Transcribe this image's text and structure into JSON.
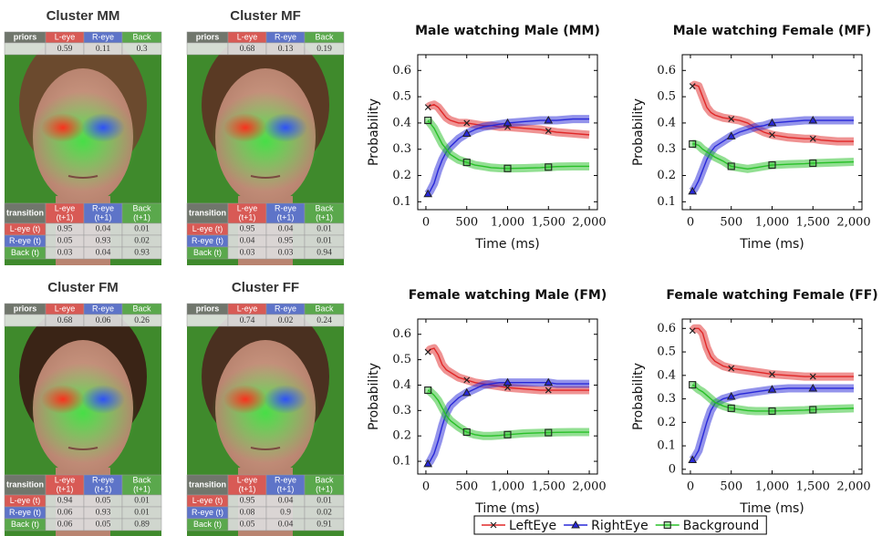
{
  "table_labels": {
    "priors": "priors",
    "cols": [
      "L-eye",
      "R-eye",
      "Back"
    ],
    "transition": "transition",
    "next_cols": [
      [
        "L-eye",
        "(t+1)"
      ],
      [
        "R-eye",
        "(t+1)"
      ],
      [
        "Back",
        "(t+1)"
      ]
    ],
    "rows": [
      "L-eye (t)",
      "R-eye (t)",
      "Back (t)"
    ]
  },
  "panels": [
    {
      "title": "Cluster MM",
      "priors": [
        0.59,
        0.11,
        0.3
      ],
      "transition": [
        [
          0.95,
          0.04,
          0.01
        ],
        [
          0.05,
          0.93,
          0.02
        ],
        [
          0.03,
          0.04,
          0.93
        ]
      ]
    },
    {
      "title": "Cluster MF",
      "priors": [
        0.68,
        0.13,
        0.19
      ],
      "transition": [
        [
          0.95,
          0.04,
          0.01
        ],
        [
          0.04,
          0.95,
          0.01
        ],
        [
          0.03,
          0.03,
          0.94
        ]
      ]
    },
    {
      "title": "Cluster FM",
      "priors": [
        0.68,
        0.06,
        0.26
      ],
      "transition": [
        [
          0.94,
          0.05,
          0.01
        ],
        [
          0.06,
          0.93,
          0.01
        ],
        [
          0.06,
          0.05,
          0.89
        ]
      ]
    },
    {
      "title": "Cluster FF",
      "priors": [
        0.74,
        0.02,
        0.24
      ],
      "transition": [
        [
          0.95,
          0.04,
          0.01
        ],
        [
          0.08,
          0.9,
          0.02
        ],
        [
          0.05,
          0.04,
          0.91
        ]
      ]
    }
  ],
  "legend": "bottom",
  "chart_data": [
    {
      "type": "line",
      "title": "Male watching Male (MM)",
      "x_label": "Time (ms)",
      "y_label": "Probability",
      "x": [
        25,
        50,
        100,
        150,
        200,
        250,
        300,
        400,
        500,
        600,
        700,
        800,
        900,
        1000,
        1200,
        1400,
        1500,
        1600,
        1800,
        2000
      ],
      "xlim": [
        -100,
        2100
      ],
      "xticks": [
        0,
        500,
        {
          "value": 1000,
          "label": "1,000"
        },
        {
          "value": 1500,
          "label": "1,500"
        },
        {
          "value": 2000,
          "label": "2,000"
        }
      ],
      "ylim": [
        0.07,
        0.66
      ],
      "yticks": [
        0.1,
        0.2,
        0.3,
        0.4,
        0.5,
        0.6
      ],
      "series": [
        {
          "name": "LeftEye",
          "color": "#e02828",
          "marker": "x",
          "values": [
            0.46,
            0.465,
            0.47,
            0.46,
            0.44,
            0.42,
            0.41,
            0.4,
            0.4,
            0.395,
            0.39,
            0.39,
            0.385,
            0.385,
            0.38,
            0.375,
            0.37,
            0.365,
            0.36,
            0.355
          ]
        },
        {
          "name": "RightEye",
          "color": "#2828d8",
          "marker": "triangle",
          "values": [
            0.13,
            0.14,
            0.17,
            0.22,
            0.26,
            0.29,
            0.31,
            0.34,
            0.36,
            0.375,
            0.385,
            0.39,
            0.395,
            0.4,
            0.405,
            0.41,
            0.41,
            0.41,
            0.415,
            0.415
          ]
        },
        {
          "name": "Background",
          "color": "#28c028",
          "marker": "square",
          "values": [
            0.41,
            0.4,
            0.38,
            0.35,
            0.32,
            0.3,
            0.28,
            0.26,
            0.25,
            0.24,
            0.235,
            0.23,
            0.228,
            0.227,
            0.228,
            0.23,
            0.232,
            0.234,
            0.235,
            0.235
          ]
        }
      ]
    },
    {
      "type": "line",
      "title": "Male watching Female (MF)",
      "x_label": "Time (ms)",
      "y_label": "Probability",
      "x": [
        25,
        50,
        100,
        150,
        200,
        250,
        300,
        400,
        500,
        600,
        700,
        800,
        900,
        1000,
        1200,
        1400,
        1500,
        1600,
        1800,
        2000
      ],
      "xlim": [
        -100,
        2100
      ],
      "xticks": [
        0,
        500,
        {
          "value": 1000,
          "label": "1,000"
        },
        {
          "value": 1500,
          "label": "1,500"
        },
        {
          "value": 2000,
          "label": "2,000"
        }
      ],
      "ylim": [
        0.07,
        0.66
      ],
      "yticks": [
        0.1,
        0.2,
        0.3,
        0.4,
        0.5,
        0.6
      ],
      "series": [
        {
          "name": "LeftEye",
          "color": "#e02828",
          "marker": "x",
          "values": [
            0.54,
            0.545,
            0.54,
            0.5,
            0.46,
            0.44,
            0.43,
            0.42,
            0.415,
            0.41,
            0.4,
            0.38,
            0.365,
            0.355,
            0.345,
            0.34,
            0.34,
            0.335,
            0.33,
            0.33
          ]
        },
        {
          "name": "RightEye",
          "color": "#2828d8",
          "marker": "triangle",
          "values": [
            0.14,
            0.15,
            0.18,
            0.22,
            0.26,
            0.29,
            0.31,
            0.33,
            0.35,
            0.365,
            0.375,
            0.385,
            0.39,
            0.4,
            0.405,
            0.41,
            0.41,
            0.41,
            0.41,
            0.41
          ]
        },
        {
          "name": "Background",
          "color": "#28c028",
          "marker": "square",
          "values": [
            0.32,
            0.32,
            0.315,
            0.3,
            0.29,
            0.28,
            0.27,
            0.255,
            0.235,
            0.23,
            0.225,
            0.23,
            0.235,
            0.24,
            0.243,
            0.245,
            0.247,
            0.248,
            0.25,
            0.252
          ]
        }
      ]
    },
    {
      "type": "line",
      "title": "Female watching Male (FM)",
      "x_label": "Time (ms)",
      "y_label": "Probability",
      "x": [
        25,
        50,
        100,
        150,
        200,
        250,
        300,
        400,
        500,
        600,
        700,
        800,
        900,
        1000,
        1200,
        1400,
        1500,
        1600,
        1800,
        2000
      ],
      "xlim": [
        -100,
        2100
      ],
      "xticks": [
        0,
        500,
        {
          "value": 1000,
          "label": "1,000"
        },
        {
          "value": 1500,
          "label": "1,500"
        },
        {
          "value": 2000,
          "label": "2,000"
        }
      ],
      "ylim": [
        0.05,
        0.66
      ],
      "yticks": [
        0.1,
        0.2,
        0.3,
        0.4,
        0.5,
        0.6
      ],
      "series": [
        {
          "name": "LeftEye",
          "color": "#e02828",
          "marker": "x",
          "values": [
            0.53,
            0.54,
            0.545,
            0.52,
            0.48,
            0.46,
            0.45,
            0.43,
            0.42,
            0.41,
            0.405,
            0.4,
            0.395,
            0.39,
            0.385,
            0.38,
            0.38,
            0.38,
            0.38,
            0.38
          ]
        },
        {
          "name": "RightEye",
          "color": "#2828d8",
          "marker": "triangle",
          "values": [
            0.09,
            0.1,
            0.13,
            0.18,
            0.24,
            0.29,
            0.32,
            0.35,
            0.37,
            0.385,
            0.4,
            0.405,
            0.41,
            0.41,
            0.41,
            0.41,
            0.41,
            0.405,
            0.405,
            0.405
          ]
        },
        {
          "name": "Background",
          "color": "#28c028",
          "marker": "square",
          "values": [
            0.38,
            0.375,
            0.36,
            0.34,
            0.31,
            0.28,
            0.26,
            0.235,
            0.215,
            0.205,
            0.2,
            0.2,
            0.202,
            0.205,
            0.21,
            0.212,
            0.213,
            0.214,
            0.215,
            0.215
          ]
        }
      ]
    },
    {
      "type": "line",
      "title": "Female watching Female (FF)",
      "x_label": "Time (ms)",
      "y_label": "Probability",
      "x": [
        25,
        50,
        100,
        150,
        200,
        250,
        300,
        400,
        500,
        600,
        700,
        800,
        900,
        1000,
        1200,
        1400,
        1500,
        1600,
        1800,
        2000
      ],
      "xlim": [
        -100,
        2100
      ],
      "xticks": [
        0,
        500,
        {
          "value": 1000,
          "label": "1,000"
        },
        {
          "value": 1500,
          "label": "1,500"
        },
        {
          "value": 2000,
          "label": "2,000"
        }
      ],
      "ylim": [
        -0.02,
        0.64
      ],
      "yticks": [
        0,
        0.1,
        0.2,
        0.3,
        0.4,
        0.5,
        0.6
      ],
      "series": [
        {
          "name": "LeftEye",
          "color": "#e02828",
          "marker": "x",
          "values": [
            0.59,
            0.6,
            0.6,
            0.58,
            0.52,
            0.48,
            0.46,
            0.44,
            0.43,
            0.425,
            0.42,
            0.415,
            0.41,
            0.405,
            0.4,
            0.395,
            0.395,
            0.395,
            0.395,
            0.395
          ]
        },
        {
          "name": "RightEye",
          "color": "#2828d8",
          "marker": "triangle",
          "values": [
            0.04,
            0.05,
            0.08,
            0.14,
            0.2,
            0.25,
            0.28,
            0.3,
            0.31,
            0.32,
            0.325,
            0.33,
            0.335,
            0.34,
            0.345,
            0.345,
            0.345,
            0.345,
            0.345,
            0.345
          ]
        },
        {
          "name": "Background",
          "color": "#28c028",
          "marker": "square",
          "values": [
            0.36,
            0.355,
            0.34,
            0.33,
            0.315,
            0.3,
            0.285,
            0.27,
            0.26,
            0.255,
            0.25,
            0.248,
            0.248,
            0.248,
            0.25,
            0.252,
            0.254,
            0.256,
            0.258,
            0.26
          ]
        }
      ]
    }
  ]
}
